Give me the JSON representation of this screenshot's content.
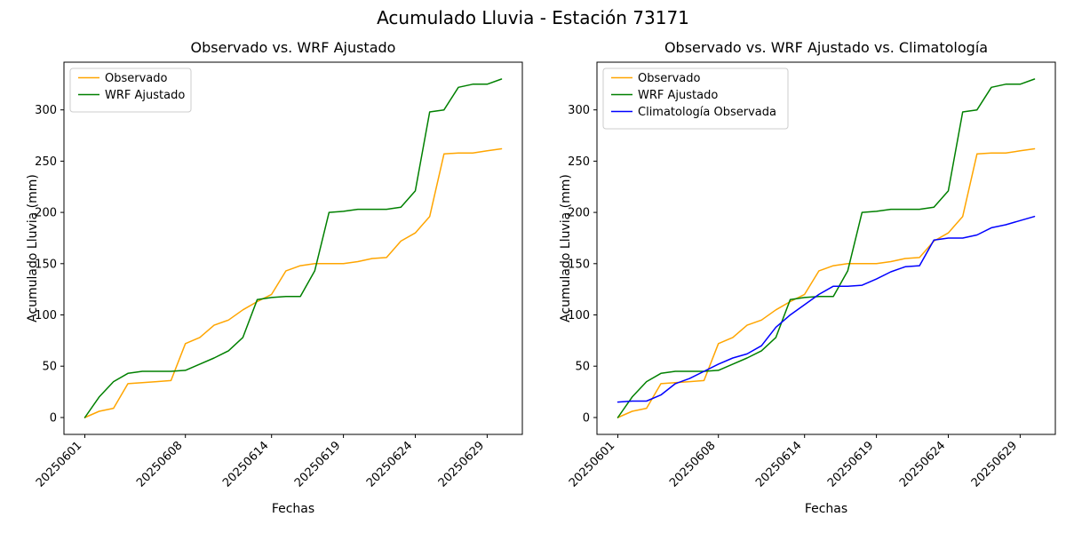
{
  "figure_title": "Acumulado Lluvia - Estación 73171",
  "chart_data": [
    {
      "type": "line",
      "title": "Observado vs. WRF Ajustado",
      "xlabel": "Fechas",
      "ylabel": "Acumulado Lluvia (mm)",
      "grid": false,
      "legend_position": "upper-left",
      "x_dates": [
        "20250601",
        "20250602",
        "20250603",
        "20250604",
        "20250605",
        "20250606",
        "20250607",
        "20250608",
        "20250609",
        "20250610",
        "20250611",
        "20250612",
        "20250613",
        "20250614",
        "20250615",
        "20250616",
        "20250617",
        "20250618",
        "20250619",
        "20250620",
        "20250621",
        "20250622",
        "20250623",
        "20250624",
        "20250625",
        "20250626",
        "20250627",
        "20250628",
        "20250629",
        "20250630"
      ],
      "x_tick_labels": [
        "20250601",
        "20250608",
        "20250614",
        "20250619",
        "20250624",
        "20250629"
      ],
      "x_tick_positions": [
        0,
        7,
        13,
        18,
        23,
        28
      ],
      "y_ticks": [
        0,
        50,
        100,
        150,
        200,
        250,
        300
      ],
      "xlim": [
        -1.45,
        30.45
      ],
      "ylim": [
        -16.5,
        346.5
      ],
      "series": [
        {
          "name": "Observado",
          "color": "#FFA500",
          "values": [
            0,
            6,
            9,
            33,
            34,
            35,
            36,
            72,
            78,
            90,
            95,
            105,
            113,
            120,
            143,
            148,
            150,
            150,
            150,
            152,
            155,
            156,
            172,
            180,
            196,
            257,
            258,
            258,
            260,
            262
          ]
        },
        {
          "name": "WRF Ajustado",
          "color": "#008000",
          "values": [
            0,
            20,
            35,
            43,
            45,
            45,
            45,
            46,
            52,
            58,
            65,
            78,
            115,
            117,
            118,
            118,
            143,
            200,
            201,
            203,
            203,
            203,
            205,
            221,
            298,
            300,
            322,
            325,
            325,
            330
          ]
        }
      ]
    },
    {
      "type": "line",
      "title": "Observado vs. WRF Ajustado vs. Climatología",
      "xlabel": "Fechas",
      "ylabel": "Acumulado Lluvia (mm)",
      "grid": false,
      "legend_position": "upper-left",
      "x_dates": [
        "20250601",
        "20250602",
        "20250603",
        "20250604",
        "20250605",
        "20250606",
        "20250607",
        "20250608",
        "20250609",
        "20250610",
        "20250611",
        "20250612",
        "20250613",
        "20250614",
        "20250615",
        "20250616",
        "20250617",
        "20250618",
        "20250619",
        "20250620",
        "20250621",
        "20250622",
        "20250623",
        "20250624",
        "20250625",
        "20250626",
        "20250627",
        "20250628",
        "20250629",
        "20250630"
      ],
      "x_tick_labels": [
        "20250601",
        "20250608",
        "20250614",
        "20250619",
        "20250624",
        "20250629"
      ],
      "x_tick_positions": [
        0,
        7,
        13,
        18,
        23,
        28
      ],
      "y_ticks": [
        0,
        50,
        100,
        150,
        200,
        250,
        300
      ],
      "xlim": [
        -1.45,
        30.45
      ],
      "ylim": [
        -16.5,
        346.5
      ],
      "series": [
        {
          "name": "Observado",
          "color": "#FFA500",
          "values": [
            0,
            6,
            9,
            33,
            34,
            35,
            36,
            72,
            78,
            90,
            95,
            105,
            113,
            120,
            143,
            148,
            150,
            150,
            150,
            152,
            155,
            156,
            172,
            180,
            196,
            257,
            258,
            258,
            260,
            262
          ]
        },
        {
          "name": "WRF Ajustado",
          "color": "#008000",
          "values": [
            0,
            20,
            35,
            43,
            45,
            45,
            45,
            46,
            52,
            58,
            65,
            78,
            115,
            117,
            118,
            118,
            143,
            200,
            201,
            203,
            203,
            203,
            205,
            221,
            298,
            300,
            322,
            325,
            325,
            330
          ]
        },
        {
          "name": "Climatología Observada",
          "color": "#0000FF",
          "values": [
            15,
            16,
            16,
            22,
            33,
            38,
            45,
            52,
            58,
            62,
            70,
            88,
            100,
            110,
            120,
            128,
            128,
            129,
            135,
            142,
            147,
            148,
            173,
            175,
            175,
            178,
            185,
            188,
            192,
            196
          ]
        }
      ]
    }
  ]
}
